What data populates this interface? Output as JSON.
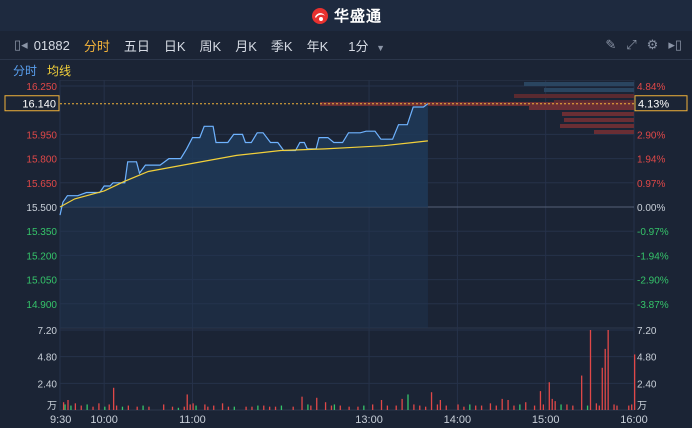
{
  "header": {
    "brand": "华盛通"
  },
  "toolbar": {
    "stock_code": "01882",
    "tabs": [
      {
        "label": "分时",
        "active": true
      },
      {
        "label": "五日"
      },
      {
        "label": "日K"
      },
      {
        "label": "周K"
      },
      {
        "label": "月K"
      },
      {
        "label": "季K"
      },
      {
        "label": "年K"
      }
    ],
    "interval": "1分",
    "icons": [
      "pencil-icon",
      "expand-icon",
      "settings-icon",
      "collapse-icon"
    ]
  },
  "subbar": {
    "mode_label": "分时",
    "avg_label": "均线"
  },
  "colors": {
    "price_line": "#6fb3ff",
    "avg_line": "#f2d03a",
    "up": "#e04848",
    "down": "#35c46a",
    "neutral": "#c8cfd8",
    "accent": "#f0b23a"
  },
  "chart_data": {
    "type": "line",
    "price_ticks": [
      "16.250",
      "15.950",
      "15.800",
      "15.650",
      "15.500",
      "15.350",
      "15.200",
      "15.050",
      "14.900"
    ],
    "pct_ticks": [
      "4.84%",
      "2.90%",
      "1.94%",
      "0.97%",
      "0.00%",
      "-0.97%",
      "-1.94%",
      "-2.90%",
      "-3.87%"
    ],
    "current_price": "16.140",
    "current_pct": "4.13%",
    "ylim": [
      14.75,
      16.25
    ],
    "prev_close": 15.5,
    "volume_ticks": [
      "7.20",
      "4.80",
      "2.40"
    ],
    "volume_unit": "万",
    "volume_max": 7.2,
    "time_labels": [
      "9:30",
      "10:00",
      "11:00",
      "13:00",
      "14:00",
      "15:00",
      "16:00"
    ],
    "price_series": [
      [
        0,
        15.45
      ],
      [
        2,
        15.53
      ],
      [
        5,
        15.57
      ],
      [
        12,
        15.57
      ],
      [
        18,
        15.59
      ],
      [
        27,
        15.59
      ],
      [
        30,
        15.63
      ],
      [
        34,
        15.63
      ],
      [
        36,
        15.65
      ],
      [
        44,
        15.65
      ],
      [
        46,
        15.78
      ],
      [
        52,
        15.78
      ],
      [
        54,
        15.71
      ],
      [
        58,
        15.76
      ],
      [
        68,
        15.76
      ],
      [
        74,
        15.8
      ],
      [
        82,
        15.8
      ],
      [
        86,
        15.86
      ],
      [
        90,
        15.93
      ],
      [
        95,
        15.93
      ],
      [
        98,
        16.0
      ],
      [
        104,
        16.0
      ],
      [
        106,
        15.9
      ],
      [
        114,
        15.9
      ],
      [
        118,
        15.95
      ],
      [
        124,
        15.95
      ],
      [
        126,
        15.9
      ],
      [
        130,
        15.9
      ],
      [
        134,
        15.96
      ],
      [
        138,
        15.96
      ],
      [
        143,
        15.9
      ],
      [
        148,
        15.9
      ],
      [
        152,
        15.85
      ],
      [
        160,
        15.85
      ],
      [
        163,
        15.9
      ],
      [
        166,
        15.9
      ],
      [
        168,
        15.86
      ],
      [
        174,
        15.86
      ],
      [
        176,
        15.93
      ],
      [
        182,
        15.93
      ],
      [
        186,
        15.9
      ],
      [
        192,
        15.9
      ],
      [
        196,
        15.96
      ],
      [
        204,
        15.96
      ],
      [
        208,
        15.97
      ],
      [
        214,
        15.97
      ],
      [
        218,
        15.92
      ],
      [
        226,
        15.92
      ],
      [
        230,
        16.01
      ],
      [
        236,
        16.01
      ],
      [
        240,
        16.12
      ],
      [
        247,
        16.12
      ],
      [
        250,
        16.14
      ]
    ],
    "avg_series": [
      [
        0,
        15.5
      ],
      [
        10,
        15.55
      ],
      [
        30,
        15.6
      ],
      [
        44,
        15.66
      ],
      [
        60,
        15.72
      ],
      [
        90,
        15.77
      ],
      [
        120,
        15.82
      ],
      [
        150,
        15.85
      ],
      [
        180,
        15.86
      ],
      [
        200,
        15.87
      ],
      [
        220,
        15.88
      ],
      [
        240,
        15.9
      ],
      [
        250,
        15.91
      ]
    ],
    "volume_series": [
      {
        "t": 2,
        "v": 0.7,
        "d": "up"
      },
      {
        "t": 3,
        "v": 0.5,
        "d": "down"
      },
      {
        "t": 5,
        "v": 0.9,
        "d": "up"
      },
      {
        "t": 7,
        "v": 0.4,
        "d": "down"
      },
      {
        "t": 10,
        "v": 0.6,
        "d": "up"
      },
      {
        "t": 14,
        "v": 0.4,
        "d": "up"
      },
      {
        "t": 18,
        "v": 0.5,
        "d": "down"
      },
      {
        "t": 22,
        "v": 0.3,
        "d": "up"
      },
      {
        "t": 26,
        "v": 0.6,
        "d": "up"
      },
      {
        "t": 30,
        "v": 0.3,
        "d": "down"
      },
      {
        "t": 33,
        "v": 0.5,
        "d": "up"
      },
      {
        "t": 36,
        "v": 2.0,
        "d": "up"
      },
      {
        "t": 38,
        "v": 0.4,
        "d": "up"
      },
      {
        "t": 42,
        "v": 0.3,
        "d": "down"
      },
      {
        "t": 46,
        "v": 0.4,
        "d": "up"
      },
      {
        "t": 52,
        "v": 0.3,
        "d": "up"
      },
      {
        "t": 56,
        "v": 0.4,
        "d": "down"
      },
      {
        "t": 60,
        "v": 0.3,
        "d": "up"
      },
      {
        "t": 70,
        "v": 0.5,
        "d": "up"
      },
      {
        "t": 76,
        "v": 0.3,
        "d": "up"
      },
      {
        "t": 80,
        "v": 0.2,
        "d": "down"
      },
      {
        "t": 84,
        "v": 0.3,
        "d": "up"
      },
      {
        "t": 86,
        "v": 1.4,
        "d": "up"
      },
      {
        "t": 88,
        "v": 0.5,
        "d": "up"
      },
      {
        "t": 90,
        "v": 0.6,
        "d": "up"
      },
      {
        "t": 92,
        "v": 0.4,
        "d": "down"
      },
      {
        "t": 98,
        "v": 0.5,
        "d": "up"
      },
      {
        "t": 100,
        "v": 0.3,
        "d": "up"
      },
      {
        "t": 104,
        "v": 0.4,
        "d": "up"
      },
      {
        "t": 110,
        "v": 0.6,
        "d": "up"
      },
      {
        "t": 114,
        "v": 0.3,
        "d": "up"
      },
      {
        "t": 118,
        "v": 0.3,
        "d": "down"
      },
      {
        "t": 126,
        "v": 0.3,
        "d": "up"
      },
      {
        "t": 130,
        "v": 0.3,
        "d": "up"
      },
      {
        "t": 134,
        "v": 0.4,
        "d": "down"
      },
      {
        "t": 138,
        "v": 0.4,
        "d": "up"
      },
      {
        "t": 142,
        "v": 0.3,
        "d": "up"
      },
      {
        "t": 146,
        "v": 0.3,
        "d": "up"
      },
      {
        "t": 150,
        "v": 0.4,
        "d": "down"
      },
      {
        "t": 158,
        "v": 0.3,
        "d": "up"
      },
      {
        "t": 164,
        "v": 1.2,
        "d": "up"
      },
      {
        "t": 168,
        "v": 0.5,
        "d": "down"
      },
      {
        "t": 170,
        "v": 0.4,
        "d": "up"
      },
      {
        "t": 174,
        "v": 1.1,
        "d": "up"
      },
      {
        "t": 180,
        "v": 0.7,
        "d": "up"
      },
      {
        "t": 184,
        "v": 0.4,
        "d": "up"
      },
      {
        "t": 186,
        "v": 0.5,
        "d": "down"
      },
      {
        "t": 190,
        "v": 0.4,
        "d": "up"
      },
      {
        "t": 196,
        "v": 0.3,
        "d": "up"
      },
      {
        "t": 202,
        "v": 0.3,
        "d": "up"
      },
      {
        "t": 206,
        "v": 0.4,
        "d": "down"
      },
      {
        "t": 212,
        "v": 0.5,
        "d": "up"
      },
      {
        "t": 218,
        "v": 0.9,
        "d": "up"
      },
      {
        "t": 222,
        "v": 0.4,
        "d": "up"
      },
      {
        "t": 228,
        "v": 0.4,
        "d": "up"
      },
      {
        "t": 232,
        "v": 1.0,
        "d": "up"
      },
      {
        "t": 236,
        "v": 1.4,
        "d": "down"
      },
      {
        "t": 240,
        "v": 0.5,
        "d": "up"
      },
      {
        "t": 244,
        "v": 0.4,
        "d": "up"
      },
      {
        "t": 248,
        "v": 0.3,
        "d": "up"
      },
      {
        "t": 252,
        "v": 1.6,
        "d": "up"
      },
      {
        "t": 256,
        "v": 0.5,
        "d": "up"
      },
      {
        "t": 258,
        "v": 0.9,
        "d": "up"
      },
      {
        "t": 262,
        "v": 0.4,
        "d": "up"
      },
      {
        "t": 270,
        "v": 0.5,
        "d": "up"
      },
      {
        "t": 274,
        "v": 0.3,
        "d": "up"
      },
      {
        "t": 278,
        "v": 0.5,
        "d": "down"
      },
      {
        "t": 282,
        "v": 0.4,
        "d": "up"
      },
      {
        "t": 286,
        "v": 0.4,
        "d": "up"
      },
      {
        "t": 292,
        "v": 0.6,
        "d": "up"
      },
      {
        "t": 296,
        "v": 0.4,
        "d": "up"
      },
      {
        "t": 300,
        "v": 1.0,
        "d": "up"
      },
      {
        "t": 304,
        "v": 0.9,
        "d": "up"
      },
      {
        "t": 308,
        "v": 0.4,
        "d": "up"
      },
      {
        "t": 312,
        "v": 0.5,
        "d": "down"
      },
      {
        "t": 316,
        "v": 0.7,
        "d": "up"
      },
      {
        "t": 322,
        "v": 0.4,
        "d": "up"
      },
      {
        "t": 326,
        "v": 1.7,
        "d": "up"
      },
      {
        "t": 328,
        "v": 0.5,
        "d": "up"
      },
      {
        "t": 332,
        "v": 2.5,
        "d": "up"
      },
      {
        "t": 334,
        "v": 1.0,
        "d": "up"
      },
      {
        "t": 336,
        "v": 0.8,
        "d": "up"
      },
      {
        "t": 340,
        "v": 0.5,
        "d": "down"
      },
      {
        "t": 344,
        "v": 0.5,
        "d": "up"
      },
      {
        "t": 348,
        "v": 0.4,
        "d": "up"
      },
      {
        "t": 354,
        "v": 3.1,
        "d": "up"
      },
      {
        "t": 358,
        "v": 0.4,
        "d": "down"
      },
      {
        "t": 360,
        "v": 7.2,
        "d": "up"
      },
      {
        "t": 364,
        "v": 0.6,
        "d": "up"
      },
      {
        "t": 366,
        "v": 0.4,
        "d": "up"
      },
      {
        "t": 368,
        "v": 3.8,
        "d": "up"
      },
      {
        "t": 370,
        "v": 5.5,
        "d": "up"
      },
      {
        "t": 372,
        "v": 7.2,
        "d": "up"
      },
      {
        "t": 376,
        "v": 0.5,
        "d": "up"
      },
      {
        "t": 378,
        "v": 0.4,
        "d": "up"
      },
      {
        "t": 386,
        "v": 0.4,
        "d": "up"
      },
      {
        "t": 388,
        "v": 0.5,
        "d": "up"
      },
      {
        "t": 390,
        "v": 5.0,
        "d": "up"
      }
    ]
  }
}
